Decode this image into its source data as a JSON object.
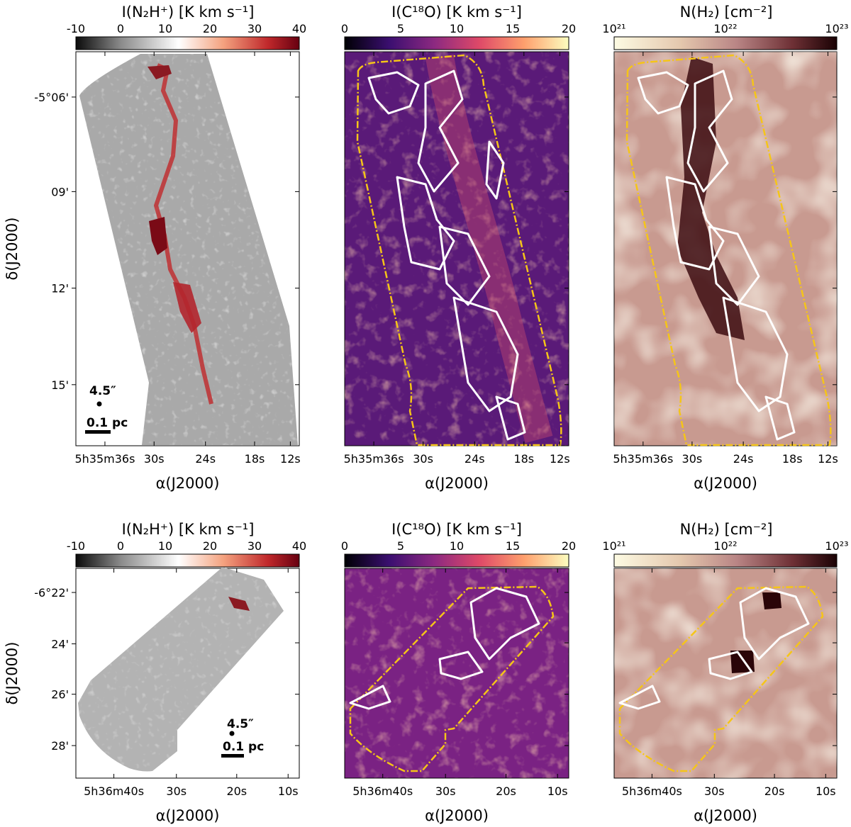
{
  "chart_data": [
    {
      "type": "heatmap",
      "colorbar_title": "I(N₂H⁺) [K km s⁻¹]",
      "colorbar_ticks": [
        "-10",
        "0",
        "10",
        "20",
        "30",
        "40"
      ],
      "colormap": [
        "#0b0b0b",
        "#8a8a8a",
        "#ffffff",
        "#f4a27f",
        "#c0282b",
        "#670010"
      ],
      "xlabel": "α(J2000)",
      "ylabel": "δ(J2000)",
      "x_ticks": [
        "5h35m36s",
        "30s",
        "24s",
        "18s",
        "12s"
      ],
      "y_ticks": [
        "-5°06'",
        "09'",
        "12'",
        "15'"
      ],
      "beam_label": "4.5″",
      "scale_label": "0.1 pc"
    },
    {
      "type": "heatmap",
      "colorbar_title": "I(C¹⁸O) [K km s⁻¹]",
      "colorbar_ticks": [
        "0",
        "5",
        "10",
        "15",
        "20"
      ],
      "colormap": [
        "#000004",
        "#3b0f70",
        "#8c2981",
        "#de4968",
        "#fe9f6d",
        "#fcfdbf"
      ],
      "xlabel": "α(J2000)",
      "x_ticks": [
        "5h35m36s",
        "30s",
        "24s",
        "18s",
        "12s"
      ],
      "contour_color": "#ffffff",
      "outline_color": "#f5c518"
    },
    {
      "type": "heatmap",
      "colorbar_title": "N(H₂) [cm⁻²]",
      "colorbar_ticks": [
        "10²¹",
        "10²²",
        "10²³"
      ],
      "log_scale": true,
      "colormap": [
        "#fdfbe3",
        "#e4c7ad",
        "#b98585",
        "#6e3035",
        "#1a0204"
      ],
      "xlabel": "α(J2000)",
      "x_ticks": [
        "5h35m36s",
        "30s",
        "24s",
        "18s",
        "12s"
      ],
      "contour_color": "#ffffff",
      "outline_color": "#f5c518"
    },
    {
      "type": "heatmap",
      "colorbar_title": "I(N₂H⁺) [K km s⁻¹]",
      "colorbar_ticks": [
        "-10",
        "0",
        "10",
        "20",
        "30",
        "40"
      ],
      "xlabel": "α(J2000)",
      "ylabel": "δ(J2000)",
      "x_ticks": [
        "5h36m40s",
        "30s",
        "20s",
        "10s"
      ],
      "y_ticks": [
        "-6°22'",
        "24'",
        "26'",
        "28'"
      ],
      "beam_label": "4.5″",
      "scale_label": "0.1 pc"
    },
    {
      "type": "heatmap",
      "colorbar_title": "I(C¹⁸O) [K km s⁻¹]",
      "colorbar_ticks": [
        "0",
        "5",
        "10",
        "15",
        "20"
      ],
      "xlabel": "α(J2000)",
      "x_ticks": [
        "5h36m40s",
        "30s",
        "20s",
        "10s"
      ]
    },
    {
      "type": "heatmap",
      "colorbar_title": "N(H₂) [cm⁻²]",
      "colorbar_ticks": [
        "10²¹",
        "10²²",
        "10²³"
      ],
      "log_scale": true,
      "xlabel": "α(J2000)",
      "x_ticks": [
        "5h36m40s",
        "30s",
        "20s",
        "10s"
      ]
    }
  ]
}
